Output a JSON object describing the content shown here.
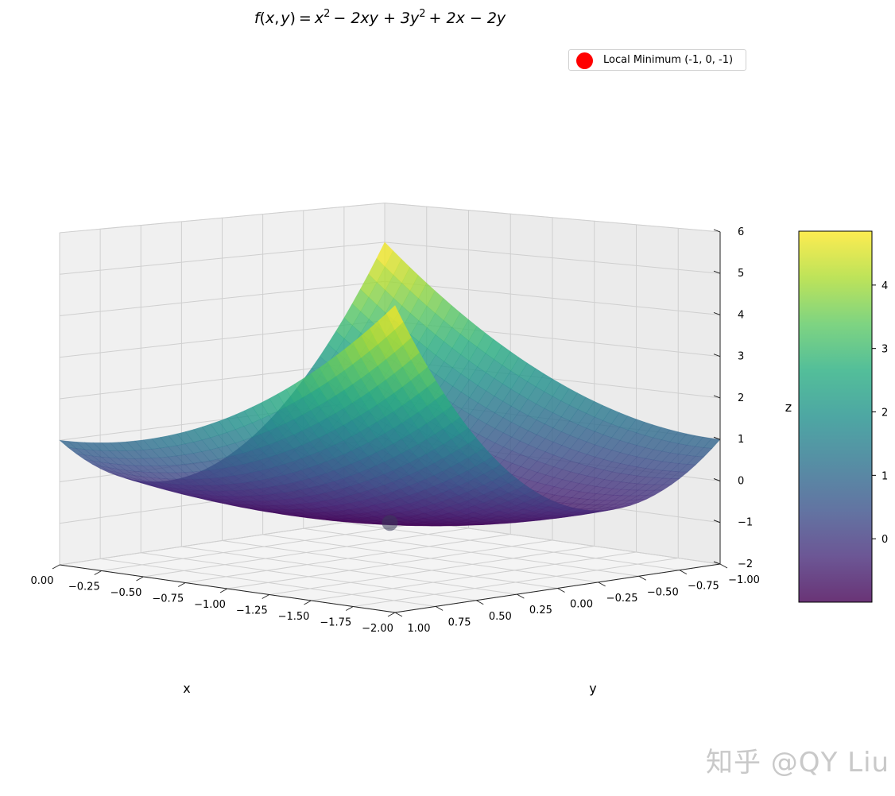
{
  "chart_data": {
    "type": "surface",
    "title": "f(x,y) = x² − 2xy + 3y² + 2x − 2y",
    "title_parts": {
      "f": "f",
      "open": "(",
      "x": "x",
      "comma": ",",
      "y": "y",
      "close": ")",
      "eq": "=",
      "t1": "x",
      "t2": "− 2xy + 3y",
      "t3": "+ 2x − 2y",
      "sup": "2"
    },
    "function": "x^2 - 2*x*y + 3*y^2 + 2*x - 2*y",
    "xlabel": "x",
    "ylabel": "y",
    "zlabel": "",
    "xlim": [
      -2,
      0
    ],
    "ylim": [
      -1,
      1
    ],
    "zlim": [
      -2,
      6
    ],
    "x_ticks": [
      "0.00",
      "−0.25",
      "−0.50",
      "−0.75",
      "−1.00",
      "−1.25",
      "−1.50",
      "−1.75",
      "−2.00"
    ],
    "x_tick_values": [
      0,
      -0.25,
      -0.5,
      -0.75,
      -1,
      -1.25,
      -1.5,
      -1.75,
      -2
    ],
    "y_ticks": [
      "1.00",
      "0.75",
      "0.50",
      "0.25",
      "0.00",
      "−0.25",
      "−0.50",
      "−0.75",
      "−1.00"
    ],
    "y_tick_values": [
      1,
      0.75,
      0.5,
      0.25,
      0,
      -0.25,
      -0.5,
      -0.75,
      -1
    ],
    "z_ticks": [
      "−2",
      "−1",
      "0",
      "1",
      "2",
      "3",
      "4",
      "5",
      "6"
    ],
    "z_tick_values": [
      -2,
      -1,
      0,
      1,
      2,
      3,
      4,
      5,
      6
    ],
    "colormap": "viridis",
    "surface_alpha": 0.8,
    "colorbar": {
      "label": "z",
      "ticks": [
        "0",
        "1",
        "2",
        "3",
        "4"
      ],
      "tick_values": [
        0,
        1,
        2,
        3,
        4
      ],
      "range": [
        -1,
        4.85
      ]
    },
    "points": [
      {
        "name": "Local Minimum (-1, 0, -1)",
        "x": -1,
        "y": 0,
        "z": -1,
        "color": "#ff0000"
      }
    ],
    "legend": {
      "position": "upper-right",
      "label": "Local Minimum (-1, 0, -1)"
    },
    "grid": true,
    "pane_color": "#f2f2f2"
  },
  "watermark": "知乎 @QY Liu"
}
